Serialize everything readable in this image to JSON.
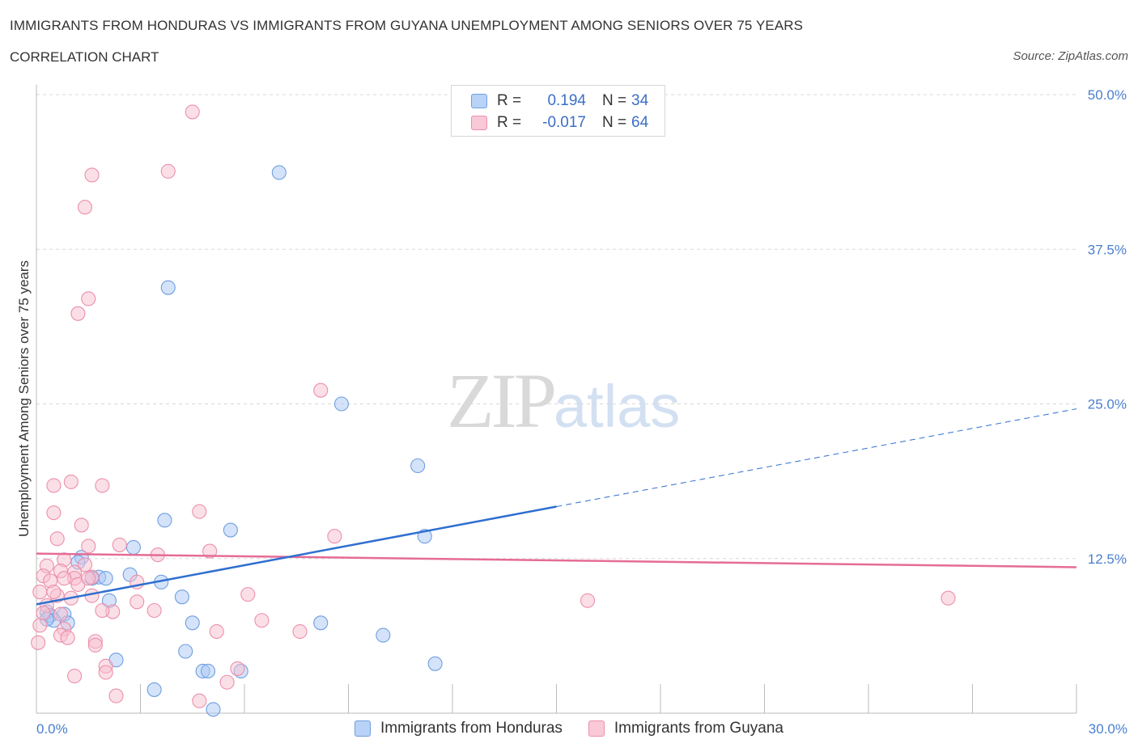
{
  "title": "IMMIGRANTS FROM HONDURAS VS IMMIGRANTS FROM GUYANA UNEMPLOYMENT AMONG SENIORS OVER 75 YEARS",
  "subtitle": "CORRELATION CHART",
  "source": "Source: ZipAtlas.com",
  "watermark": {
    "zip": "ZIP",
    "atlas": "atlas"
  },
  "legend": {
    "rows": [
      {
        "r_label": "R =",
        "r_value": "0.194",
        "n_label": "N =",
        "n_value": "34"
      },
      {
        "r_label": "R =",
        "r_value": "-0.017",
        "n_label": "N =",
        "n_value": "64"
      }
    ]
  },
  "colors": {
    "honduras_fill": "#a9c8f5",
    "honduras_stroke": "#6f9fe0",
    "honduras_line": "#2f6fcf",
    "guyana_fill": "#f7bfd0",
    "guyana_stroke": "#ec8fab",
    "guyana_line": "#e56c97",
    "tick_label": "#4a7fcf",
    "grid": "#d8d8d8"
  },
  "chart_data": {
    "type": "scatter",
    "title": "IMMIGRANTS FROM HONDURAS VS IMMIGRANTS FROM GUYANA UNEMPLOYMENT AMONG SENIORS OVER 75 YEARS",
    "xlabel": "",
    "ylabel": "Unemployment Among Seniors over 75 years",
    "xlim": [
      0,
      30
    ],
    "ylim": [
      0,
      50
    ],
    "x_tick_labels": [
      "0.0%",
      "30.0%"
    ],
    "y_ticks": [
      12.5,
      25,
      37.5,
      50
    ],
    "y_tick_labels": [
      "12.5%",
      "25.0%",
      "37.5%",
      "50.0%"
    ],
    "series": [
      {
        "name": "Immigrants from Honduras",
        "points": [
          [
            7,
            43.7
          ],
          [
            3.8,
            34.4
          ],
          [
            8.8,
            25.0
          ],
          [
            11,
            20.0
          ],
          [
            11.2,
            14.3
          ],
          [
            3.7,
            15.6
          ],
          [
            5.6,
            14.8
          ],
          [
            2.8,
            13.4
          ],
          [
            1.3,
            12.6
          ],
          [
            1.2,
            12.2
          ],
          [
            2.7,
            11.2
          ],
          [
            1.8,
            11.0
          ],
          [
            2.0,
            10.9
          ],
          [
            1.6,
            10.9
          ],
          [
            3.6,
            10.6
          ],
          [
            2.1,
            9.1
          ],
          [
            4.2,
            9.4
          ],
          [
            0.3,
            8.2
          ],
          [
            0.8,
            8.0
          ],
          [
            0.4,
            7.9
          ],
          [
            0.5,
            7.5
          ],
          [
            0.3,
            7.6
          ],
          [
            0.9,
            7.3
          ],
          [
            4.5,
            7.3
          ],
          [
            8.2,
            7.3
          ],
          [
            10.0,
            6.3
          ],
          [
            4.3,
            5.0
          ],
          [
            2.3,
            4.3
          ],
          [
            11.5,
            4.0
          ],
          [
            4.8,
            3.4
          ],
          [
            4.95,
            3.4
          ],
          [
            5.9,
            3.4
          ],
          [
            3.4,
            1.9
          ],
          [
            5.1,
            0.3
          ]
        ]
      },
      {
        "name": "Immigrants from Guyana",
        "points": [
          [
            4.5,
            48.6
          ],
          [
            3.8,
            43.8
          ],
          [
            1.6,
            43.5
          ],
          [
            1.4,
            40.9
          ],
          [
            1.5,
            33.5
          ],
          [
            1.2,
            32.3
          ],
          [
            8.2,
            26.1
          ],
          [
            0.5,
            18.4
          ],
          [
            1.0,
            18.7
          ],
          [
            1.9,
            18.4
          ],
          [
            0.5,
            16.2
          ],
          [
            4.7,
            16.3
          ],
          [
            1.3,
            15.2
          ],
          [
            8.6,
            14.3
          ],
          [
            0.6,
            14.1
          ],
          [
            1.5,
            13.5
          ],
          [
            2.4,
            13.6
          ],
          [
            5.0,
            13.1
          ],
          [
            0.8,
            12.4
          ],
          [
            3.5,
            12.8
          ],
          [
            1.4,
            12.0
          ],
          [
            0.3,
            11.9
          ],
          [
            1.1,
            11.4
          ],
          [
            0.7,
            11.5
          ],
          [
            0.2,
            11.1
          ],
          [
            1.6,
            11.0
          ],
          [
            1.1,
            10.9
          ],
          [
            0.4,
            10.7
          ],
          [
            0.8,
            10.9
          ],
          [
            1.2,
            10.4
          ],
          [
            2.9,
            10.6
          ],
          [
            0.1,
            9.8
          ],
          [
            0.6,
            9.5
          ],
          [
            1.6,
            9.5
          ],
          [
            6.1,
            9.6
          ],
          [
            1.0,
            9.3
          ],
          [
            2.9,
            9.0
          ],
          [
            15.9,
            9.1
          ],
          [
            26.3,
            9.3
          ],
          [
            0.3,
            8.7
          ],
          [
            3.4,
            8.3
          ],
          [
            2.2,
            8.2
          ],
          [
            0.7,
            8.0
          ],
          [
            6.5,
            7.5
          ],
          [
            0.1,
            7.1
          ],
          [
            0.8,
            6.8
          ],
          [
            5.2,
            6.6
          ],
          [
            7.6,
            6.6
          ],
          [
            0.7,
            6.3
          ],
          [
            0.9,
            6.1
          ],
          [
            1.7,
            5.8
          ],
          [
            1.7,
            5.5
          ],
          [
            0.05,
            5.7
          ],
          [
            2.0,
            3.8
          ],
          [
            5.8,
            3.6
          ],
          [
            1.1,
            3.0
          ],
          [
            2.0,
            3.3
          ],
          [
            5.5,
            2.5
          ],
          [
            2.3,
            1.4
          ],
          [
            4.7,
            1.0
          ],
          [
            0.5,
            9.8
          ],
          [
            1.5,
            10.9
          ],
          [
            1.9,
            8.3
          ],
          [
            0.2,
            8.1
          ]
        ]
      }
    ],
    "trend_lines": [
      {
        "series": "Immigrants from Honduras",
        "solid": [
          [
            0,
            8.8
          ],
          [
            15,
            16.7
          ]
        ],
        "dashed": [
          [
            15,
            16.7
          ],
          [
            30,
            24.6
          ]
        ]
      },
      {
        "series": "Immigrants from Guyana",
        "solid": [
          [
            0,
            12.9
          ],
          [
            30,
            11.8
          ]
        ]
      }
    ],
    "legend": [
      "Immigrants from Honduras",
      "Immigrants from Guyana"
    ],
    "legend_position": "bottom"
  }
}
